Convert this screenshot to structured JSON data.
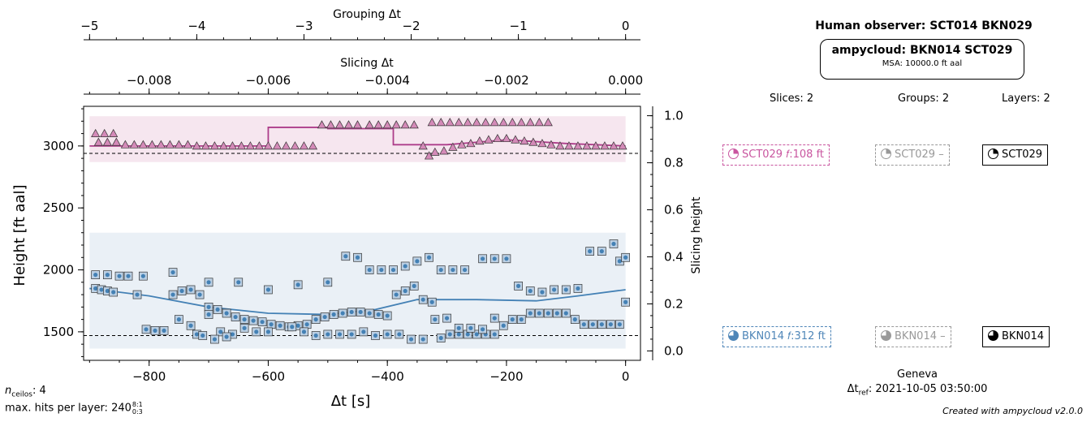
{
  "chart_data": {
    "type": "scatter",
    "xlabel": "Δt [s]",
    "ylabel": "Height [ft aal]",
    "y2label": "Slicing height",
    "xlim": [
      -910,
      25
    ],
    "ylim": [
      1270,
      3320
    ],
    "y2lim": [
      -0.04,
      1.04
    ],
    "xticks": [
      -800,
      -600,
      -400,
      -200,
      0
    ],
    "yticks": [
      1500,
      2000,
      2500,
      3000
    ],
    "y2ticks": [
      0.0,
      0.2,
      0.4,
      0.6,
      0.8,
      1.0
    ],
    "top_axis_grouping": {
      "label": "Grouping Δt",
      "ticks": [
        -5,
        -4,
        -3,
        -2,
        -1,
        0
      ]
    },
    "top_axis_slicing": {
      "label": "Slicing Δt",
      "ticks": [
        -0.008,
        -0.006,
        -0.004,
        -0.002,
        0.0
      ]
    },
    "grid": false,
    "reference_lines": [
      2940,
      1470
    ],
    "layers": [
      {
        "name": "SCT029 layer",
        "color": "#ad3d8a",
        "band_color": "#f6e6ef",
        "band": [
          -900,
          0,
          2870,
          3240
        ],
        "points": [
          [
            -890,
            3100
          ],
          [
            -875,
            3100
          ],
          [
            -860,
            3100
          ],
          [
            -885,
            3030
          ],
          [
            -870,
            3030
          ],
          [
            -855,
            3030
          ],
          [
            -840,
            3010
          ],
          [
            -825,
            3010
          ],
          [
            -810,
            3010
          ],
          [
            -795,
            3010
          ],
          [
            -780,
            3010
          ],
          [
            -765,
            3010
          ],
          [
            -750,
            3010
          ],
          [
            -735,
            3010
          ],
          [
            -720,
            3000
          ],
          [
            -705,
            3000
          ],
          [
            -690,
            3000
          ],
          [
            -675,
            3000
          ],
          [
            -660,
            3000
          ],
          [
            -645,
            3000
          ],
          [
            -630,
            3000
          ],
          [
            -615,
            3000
          ],
          [
            -600,
            3000
          ],
          [
            -585,
            3000
          ],
          [
            -570,
            3000
          ],
          [
            -555,
            3000
          ],
          [
            -540,
            3000
          ],
          [
            -525,
            3000
          ],
          [
            -510,
            3170
          ],
          [
            -495,
            3170
          ],
          [
            -480,
            3170
          ],
          [
            -465,
            3170
          ],
          [
            -450,
            3170
          ],
          [
            -430,
            3170
          ],
          [
            -415,
            3170
          ],
          [
            -400,
            3170
          ],
          [
            -385,
            3170
          ],
          [
            -370,
            3170
          ],
          [
            -355,
            3170
          ],
          [
            -340,
            3000
          ],
          [
            -330,
            2920
          ],
          [
            -320,
            2950
          ],
          [
            -305,
            2960
          ],
          [
            -290,
            2990
          ],
          [
            -275,
            3010
          ],
          [
            -260,
            3020
          ],
          [
            -245,
            3040
          ],
          [
            -230,
            3050
          ],
          [
            -215,
            3060
          ],
          [
            -200,
            3060
          ],
          [
            -185,
            3050
          ],
          [
            -170,
            3040
          ],
          [
            -155,
            3030
          ],
          [
            -140,
            3020
          ],
          [
            -125,
            3010
          ],
          [
            -110,
            3000
          ],
          [
            -95,
            3000
          ],
          [
            -80,
            3000
          ],
          [
            -65,
            3000
          ],
          [
            -50,
            3000
          ],
          [
            -35,
            3000
          ],
          [
            -20,
            3000
          ],
          [
            -5,
            3000
          ],
          [
            -325,
            3190
          ],
          [
            -310,
            3190
          ],
          [
            -295,
            3190
          ],
          [
            -280,
            3190
          ],
          [
            -265,
            3190
          ],
          [
            -250,
            3190
          ],
          [
            -235,
            3190
          ],
          [
            -220,
            3190
          ],
          [
            -205,
            3190
          ],
          [
            -190,
            3190
          ],
          [
            -175,
            3190
          ],
          [
            -160,
            3190
          ],
          [
            -145,
            3190
          ],
          [
            -130,
            3190
          ]
        ],
        "fit_line": [
          [
            -900,
            3000
          ],
          [
            -600,
            3000
          ],
          [
            -600,
            3150
          ],
          [
            -500,
            3150
          ],
          [
            -500,
            3140
          ],
          [
            -390,
            3140
          ],
          [
            -390,
            3010
          ],
          [
            -300,
            3010
          ],
          [
            -200,
            3050
          ],
          [
            -100,
            3020
          ],
          [
            0,
            3000
          ]
        ]
      },
      {
        "name": "BKN014 layer",
        "color": "#4481b5",
        "band_color": "#eaf0f6",
        "band": [
          -900,
          0,
          1365,
          2300
        ],
        "points": [
          [
            -890,
            1850
          ],
          [
            -880,
            1840
          ],
          [
            -870,
            1830
          ],
          [
            -860,
            1820
          ],
          [
            -850,
            1950
          ],
          [
            -835,
            1950
          ],
          [
            -820,
            1800
          ],
          [
            -805,
            1520
          ],
          [
            -790,
            1510
          ],
          [
            -775,
            1510
          ],
          [
            -760,
            1800
          ],
          [
            -745,
            1830
          ],
          [
            -730,
            1840
          ],
          [
            -715,
            1800
          ],
          [
            -700,
            1700
          ],
          [
            -685,
            1680
          ],
          [
            -670,
            1650
          ],
          [
            -655,
            1620
          ],
          [
            -640,
            1600
          ],
          [
            -625,
            1590
          ],
          [
            -610,
            1580
          ],
          [
            -595,
            1560
          ],
          [
            -580,
            1550
          ],
          [
            -565,
            1540
          ],
          [
            -550,
            1550
          ],
          [
            -535,
            1560
          ],
          [
            -520,
            1600
          ],
          [
            -505,
            1620
          ],
          [
            -490,
            1640
          ],
          [
            -475,
            1650
          ],
          [
            -460,
            1660
          ],
          [
            -445,
            1660
          ],
          [
            -430,
            1650
          ],
          [
            -415,
            1640
          ],
          [
            -400,
            1630
          ],
          [
            -385,
            1800
          ],
          [
            -370,
            1830
          ],
          [
            -355,
            1870
          ],
          [
            -340,
            1760
          ],
          [
            -325,
            1740
          ],
          [
            -310,
            1450
          ],
          [
            -295,
            1480
          ],
          [
            -280,
            1480
          ],
          [
            -265,
            1480
          ],
          [
            -250,
            1480
          ],
          [
            -235,
            1480
          ],
          [
            -220,
            1480
          ],
          [
            -205,
            1550
          ],
          [
            -190,
            1600
          ],
          [
            -175,
            1600
          ],
          [
            -160,
            1650
          ],
          [
            -145,
            1650
          ],
          [
            -130,
            1650
          ],
          [
            -115,
            1650
          ],
          [
            -100,
            1650
          ],
          [
            -85,
            1600
          ],
          [
            -70,
            1560
          ],
          [
            -55,
            1560
          ],
          [
            -40,
            1560
          ],
          [
            -25,
            1560
          ],
          [
            -10,
            1560
          ],
          [
            -890,
            1960
          ],
          [
            -870,
            1960
          ],
          [
            -810,
            1950
          ],
          [
            -760,
            1980
          ],
          [
            -700,
            1900
          ],
          [
            -650,
            1900
          ],
          [
            -600,
            1840
          ],
          [
            -550,
            1880
          ],
          [
            -500,
            1900
          ],
          [
            -470,
            2110
          ],
          [
            -450,
            2100
          ],
          [
            -430,
            2000
          ],
          [
            -410,
            2000
          ],
          [
            -390,
            2000
          ],
          [
            -370,
            2030
          ],
          [
            -350,
            2070
          ],
          [
            -330,
            2100
          ],
          [
            -310,
            2000
          ],
          [
            -290,
            2000
          ],
          [
            -270,
            2000
          ],
          [
            -240,
            2090
          ],
          [
            -220,
            2090
          ],
          [
            -200,
            2090
          ],
          [
            -180,
            1870
          ],
          [
            -160,
            1830
          ],
          [
            -140,
            1820
          ],
          [
            -120,
            1840
          ],
          [
            -100,
            1840
          ],
          [
            -80,
            1850
          ],
          [
            -60,
            2150
          ],
          [
            -40,
            2150
          ],
          [
            -20,
            2210
          ],
          [
            -10,
            2070
          ],
          [
            0,
            2100
          ],
          [
            0,
            1740
          ],
          [
            -700,
            1640
          ],
          [
            -680,
            1500
          ],
          [
            -660,
            1480
          ],
          [
            -640,
            1530
          ],
          [
            -620,
            1500
          ],
          [
            -600,
            1500
          ],
          [
            -560,
            1540
          ],
          [
            -540,
            1500
          ],
          [
            -520,
            1470
          ],
          [
            -500,
            1480
          ],
          [
            -480,
            1480
          ],
          [
            -460,
            1480
          ],
          [
            -440,
            1500
          ],
          [
            -420,
            1470
          ],
          [
            -400,
            1480
          ],
          [
            -380,
            1480
          ],
          [
            -360,
            1440
          ],
          [
            -340,
            1440
          ],
          [
            -320,
            1600
          ],
          [
            -300,
            1610
          ],
          [
            -280,
            1530
          ],
          [
            -260,
            1530
          ],
          [
            -240,
            1520
          ],
          [
            -220,
            1610
          ],
          [
            -750,
            1600
          ],
          [
            -730,
            1550
          ],
          [
            -720,
            1480
          ],
          [
            -710,
            1470
          ],
          [
            -690,
            1440
          ],
          [
            -670,
            1460
          ]
        ],
        "fit_line": [
          [
            -900,
            1850
          ],
          [
            -800,
            1790
          ],
          [
            -700,
            1700
          ],
          [
            -600,
            1650
          ],
          [
            -500,
            1640
          ],
          [
            -420,
            1680
          ],
          [
            -350,
            1760
          ],
          [
            -250,
            1760
          ],
          [
            -150,
            1750
          ],
          [
            -80,
            1790
          ],
          [
            0,
            1840
          ]
        ]
      }
    ]
  },
  "observer": {
    "title": "Human observer: SCT014 BKN029"
  },
  "ampycloud": {
    "title": "ampycloud: BKN014 SCT029",
    "msa": "MSA: 10000.0 ft aal"
  },
  "counts": {
    "slices": "Slices: 2",
    "groups": "Groups: 2",
    "layers": "Layers: 2"
  },
  "tags": {
    "slice_upper": "SCT029 𝑓:108 ft",
    "group_upper": "SCT029 –",
    "layer_upper": "SCT029",
    "slice_lower": "BKN014 𝑓:312 ft",
    "group_lower": "BKN014 –",
    "layer_lower": "BKN014"
  },
  "location": {
    "station": "Geneva",
    "ref_label": "Δt",
    "ref_sub": "ref",
    "ref_time": ": 2021-10-05 03:50:00"
  },
  "footer": {
    "ceilos_label": "n",
    "ceilos_sub": "ceilos",
    "ceilos_value": ": 4",
    "hits_label": "max. hits per layer: 240",
    "hits_sup": "8:1",
    "hits_sub": "0:3",
    "credit": "Created with ampycloud v2.0.0"
  },
  "colors": {
    "slice_pink": "#c9559f",
    "slice_blue": "#4f86b8",
    "group_grey": "#999999"
  }
}
